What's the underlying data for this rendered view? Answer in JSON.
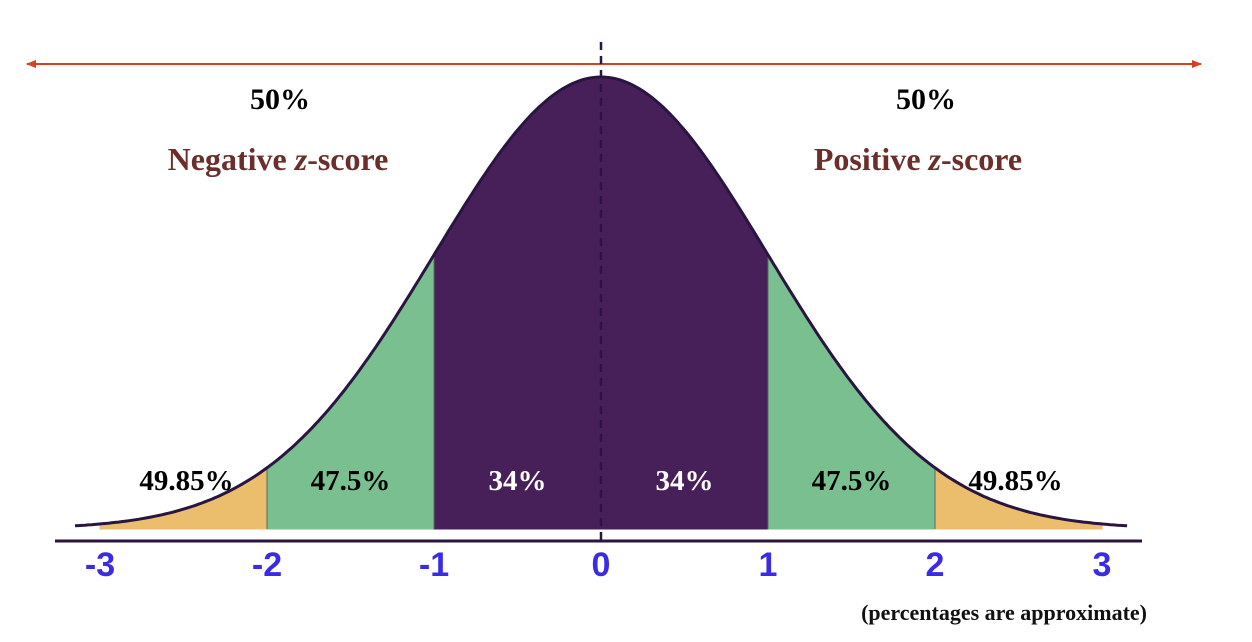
{
  "spread": {
    "left_percent": "50%",
    "right_percent": "50%",
    "left_title_prefix": "Negative ",
    "left_title_italic": "z",
    "left_title_suffix": "-score",
    "right_title_prefix": "Positive ",
    "right_title_italic": "z",
    "right_title_suffix": "-score"
  },
  "regions": [
    {
      "from": -3,
      "to": -2,
      "label": "49.85%",
      "fill": "#EBBE6E",
      "text_color": "#000000"
    },
    {
      "from": -2,
      "to": -1,
      "label": "47.5%",
      "fill": "#79BF8F",
      "text_color": "#000000"
    },
    {
      "from": -1,
      "to": 0,
      "label": "34%",
      "fill": "#47205A",
      "text_color": "#FFFFFF"
    },
    {
      "from": 0,
      "to": 1,
      "label": "34%",
      "fill": "#47205A",
      "text_color": "#FFFFFF"
    },
    {
      "from": 1,
      "to": 2,
      "label": "47.5%",
      "fill": "#79BF8F",
      "text_color": "#000000"
    },
    {
      "from": 2,
      "to": 3,
      "label": "49.85%",
      "fill": "#EBBE6E",
      "text_color": "#000000"
    }
  ],
  "ticks": [
    "-3",
    "-2",
    "-1",
    "0",
    "1",
    "2",
    "3"
  ],
  "footnote": "(percentages are approximate)",
  "colors": {
    "arrow": "#D9401E",
    "curve_outline": "#2A1540",
    "axis": "#2A1540",
    "title_text": "#6B2E2B",
    "tick_text": "#3A2BE6"
  }
}
